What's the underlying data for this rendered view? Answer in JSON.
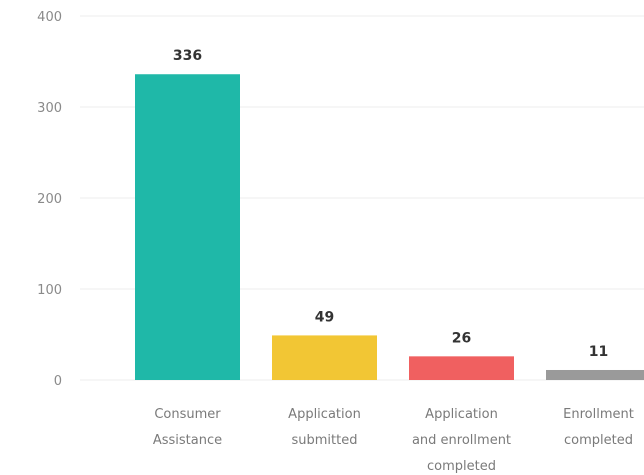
{
  "chart_data": {
    "type": "bar",
    "categories": [
      [
        "Consumer",
        "Assistance"
      ],
      [
        "Application",
        "submitted"
      ],
      [
        "Application",
        "and enrollment",
        "completed"
      ],
      [
        "Enrollment",
        "completed"
      ]
    ],
    "values": [
      336,
      49,
      26,
      11
    ],
    "data_labels": [
      "336",
      "49",
      "26",
      "11"
    ],
    "colors": [
      "#1fb8a8",
      "#f2c634",
      "#f06060",
      "#9a9a9a"
    ],
    "ylim": [
      0,
      400
    ],
    "yticks": [
      "0",
      "100",
      "200",
      "300",
      "400"
    ],
    "grid": true,
    "title": "",
    "xlabel": "",
    "ylabel": ""
  }
}
